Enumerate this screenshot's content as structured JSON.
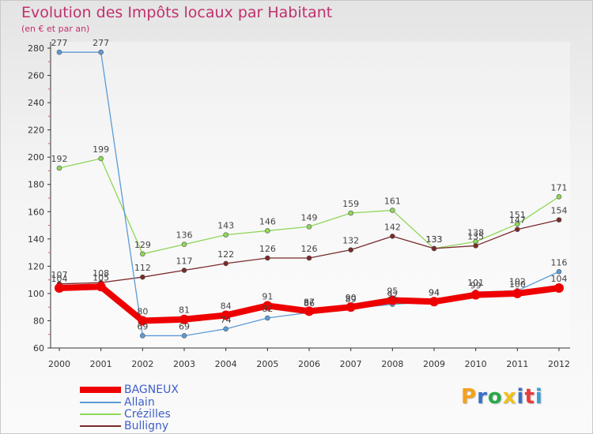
{
  "title": "Evolution des Impôts locaux par Habitant",
  "subtitle": "(en € et par an)",
  "logo": {
    "text": "Proxiti",
    "letter_colors": [
      "#f4a21b",
      "#3a6fc8",
      "#2aa84a",
      "#f0c020",
      "#3a6fc8",
      "#e83c3c",
      "#3aa0d8"
    ]
  },
  "chart_data": {
    "type": "line",
    "title": "Evolution des Impôts locaux par Habitant",
    "subtitle": "(en € et par an)",
    "xlabel": "",
    "ylabel": "",
    "x": [
      "2000",
      "2001",
      "2002",
      "2003",
      "2004",
      "2005",
      "2006",
      "2007",
      "2008",
      "2009",
      "2010",
      "2011",
      "2012"
    ],
    "ylim": [
      60,
      280
    ],
    "yticks": [
      60,
      80,
      100,
      120,
      140,
      160,
      180,
      200,
      220,
      240,
      260,
      280
    ],
    "grid": false,
    "legend_position": "bottom-left",
    "series": [
      {
        "name": "BAGNEUX",
        "color": "#ee0000",
        "values": [
          104,
          105,
          80,
          81,
          84,
          91,
          87,
          90,
          95,
          94,
          99,
          100,
          104
        ],
        "labels": [
          "104",
          "105",
          "80",
          "81",
          "84",
          "91",
          "87",
          "90",
          "95",
          "94",
          "99",
          "100",
          "104"
        ]
      },
      {
        "name": "Allain",
        "color": "#5b9bd5",
        "values": [
          277,
          277,
          69,
          69,
          74,
          82,
          86,
          89,
          92,
          94,
          101,
          102,
          116
        ],
        "labels": [
          "277",
          "277",
          "69",
          "69",
          "74",
          "82",
          "86",
          "89",
          "92",
          "94",
          "101",
          "102",
          "116"
        ]
      },
      {
        "name": "Crézilles",
        "color": "#8fd65a",
        "values": [
          192,
          199,
          129,
          136,
          143,
          146,
          149,
          159,
          161,
          133,
          138,
          151,
          171
        ],
        "labels": [
          "192",
          "199",
          "129",
          "136",
          "143",
          "146",
          "149",
          "159",
          "161",
          "133",
          "138",
          "151",
          "171"
        ]
      },
      {
        "name": "Bulligny",
        "color": "#7a2a2a",
        "values": [
          107,
          108,
          112,
          117,
          122,
          126,
          126,
          132,
          142,
          133,
          135,
          147,
          154
        ],
        "labels": [
          "107",
          "108",
          "112",
          "117",
          "122",
          "126",
          "126",
          "132",
          "142",
          "133",
          "135",
          "147",
          "154"
        ]
      }
    ]
  }
}
